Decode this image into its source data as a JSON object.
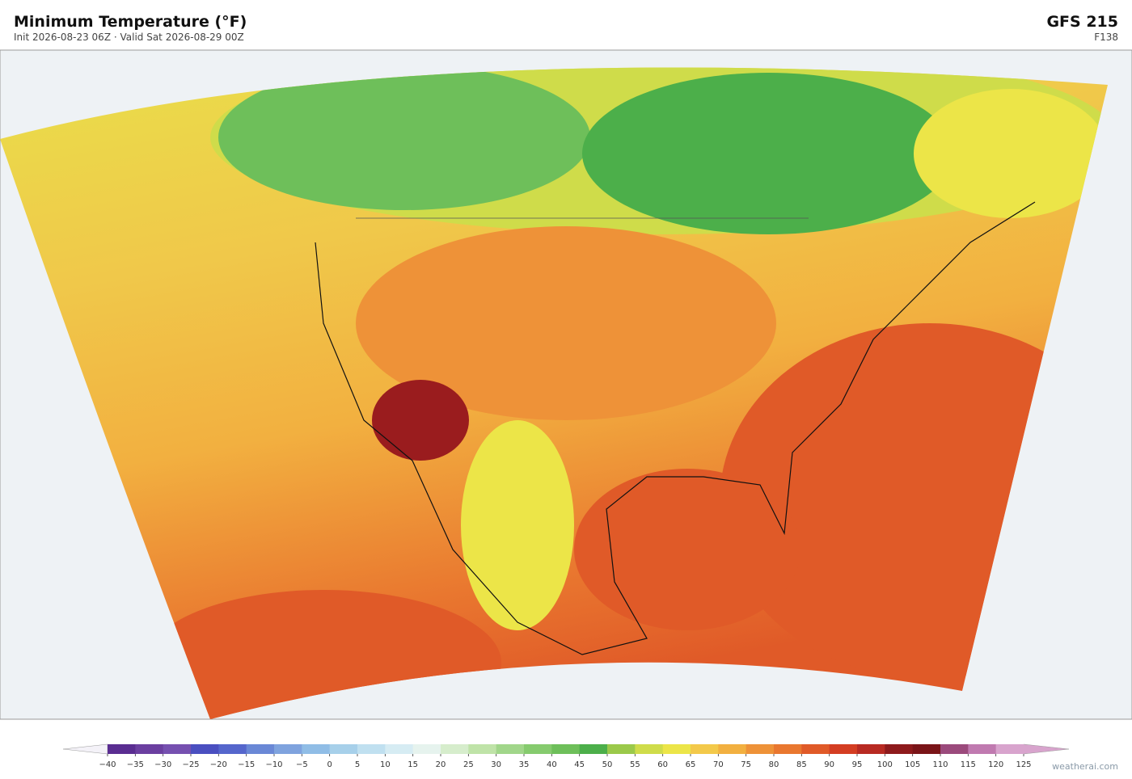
{
  "header": {
    "title": "Minimum Temperature  (°F)",
    "subtitle": "Init 2026-08-23 06Z  ·  Valid Sat 2026-08-29 00Z",
    "model": "GFS  215",
    "forecast_hour": "F138"
  },
  "colorbar": {
    "ticks": [
      {
        "value": -40,
        "label": "−40"
      },
      {
        "value": -35,
        "label": "−35"
      },
      {
        "value": -30,
        "label": "−30"
      },
      {
        "value": -25,
        "label": "−25"
      },
      {
        "value": -20,
        "label": "−20"
      },
      {
        "value": -15,
        "label": "−15"
      },
      {
        "value": -10,
        "label": "−10"
      },
      {
        "value": -5,
        "label": "−5"
      },
      0,
      5,
      10,
      15,
      20,
      25,
      30,
      35,
      40,
      45,
      50,
      55,
      60,
      65,
      70,
      75,
      80,
      85,
      90,
      95,
      100,
      105,
      110,
      115,
      120,
      125
    ],
    "colors": [
      "#5a2d91",
      "#6b3fa0",
      "#7650b0",
      "#4a4fc0",
      "#5566cc",
      "#6a88d6",
      "#7fa3de",
      "#90bde6",
      "#a7d0ea",
      "#c0e0f0",
      "#d6ecf3",
      "#e6f3ee",
      "#d6edcc",
      "#bfe3a8",
      "#a1d68a",
      "#86cb6e",
      "#6ebf5a",
      "#4caf4a",
      "#9bc94a",
      "#cfdc4a",
      "#ece548",
      "#f3c94a",
      "#f2b040",
      "#ee9238",
      "#e9772f",
      "#e05a28",
      "#d43d22",
      "#b82a22",
      "#8e1a1c",
      "#7a1418",
      "#9b4a7c",
      "#c07ab0",
      "#d8a4cd"
    ],
    "under_color": "#f4f2f8",
    "over_color": "#d8a4cd"
  },
  "footer": {
    "credit": "weatherai.com"
  }
}
